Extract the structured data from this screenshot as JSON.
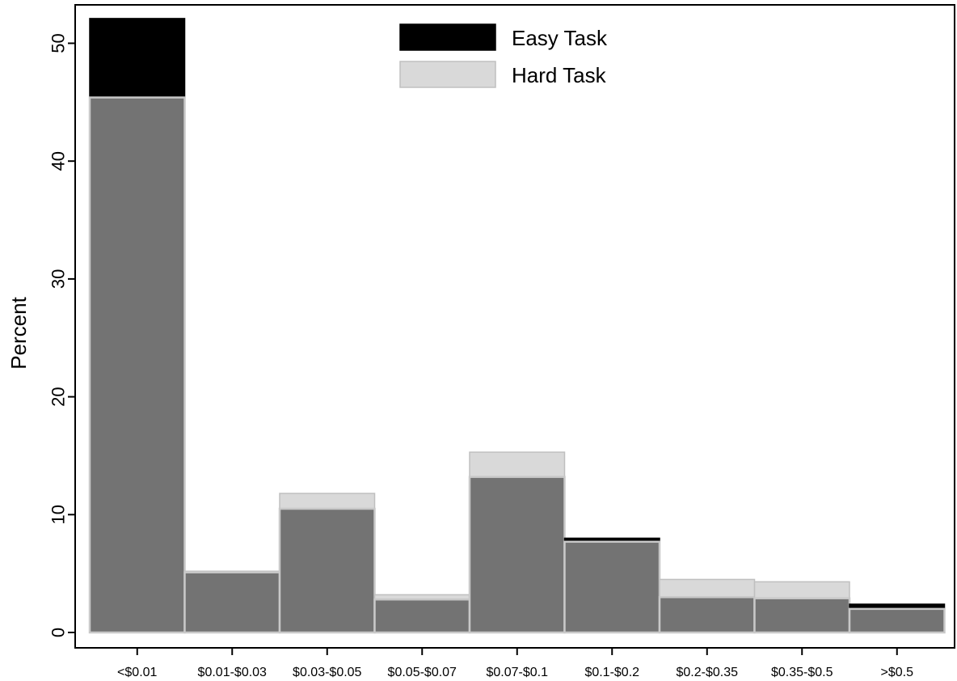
{
  "chart_data": {
    "type": "bar",
    "title": "",
    "xlabel": "",
    "ylabel": "Percent",
    "ylim": [
      0,
      52
    ],
    "yticks": [
      0,
      10,
      20,
      30,
      40,
      50
    ],
    "categories": [
      "<$0.01",
      "$0.01-$0.03",
      "$0.03-$0.05",
      "$0.05-$0.07",
      "$0.07-$0.1",
      "$0.1-$0.2",
      "$0.2-$0.35",
      "$0.35-$0.5",
      ">$0.5"
    ],
    "series": [
      {
        "name": "Easy Task",
        "color": "#000000",
        "values": [
          52.1,
          5.1,
          10.5,
          2.8,
          13.2,
          8.0,
          3.0,
          2.9,
          2.4
        ]
      },
      {
        "name": "Hard Task",
        "color": "#d9d9d9",
        "values": [
          45.4,
          5.2,
          11.8,
          3.2,
          15.3,
          7.7,
          4.5,
          4.3,
          2.0
        ]
      }
    ],
    "overlap_color": "#737373",
    "legend_position": "top-center",
    "grid": false
  }
}
